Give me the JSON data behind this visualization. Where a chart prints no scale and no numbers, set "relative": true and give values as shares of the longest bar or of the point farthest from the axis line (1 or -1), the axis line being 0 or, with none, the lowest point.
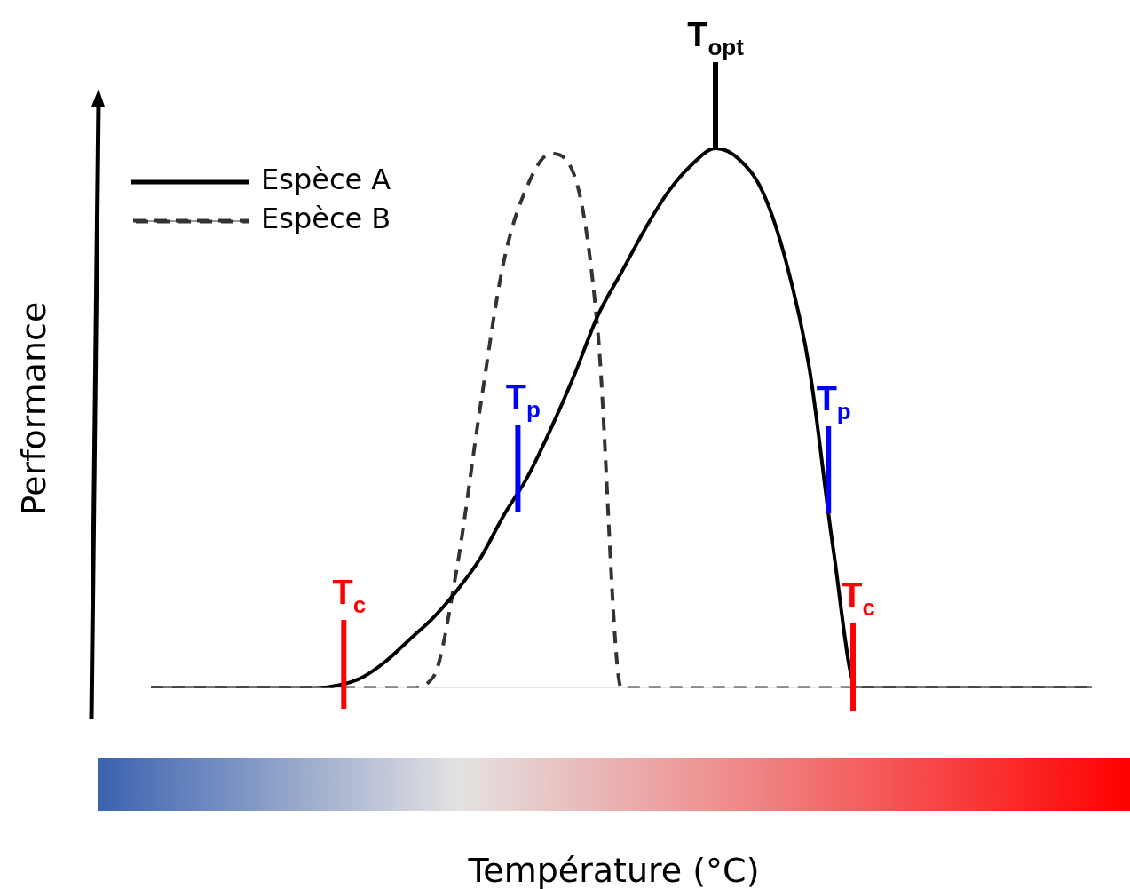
{
  "chart_data": {
    "type": "line",
    "relative": true,
    "xlabel": "Température (°C)",
    "ylabel": "Performance",
    "categories": [
      null,
      null,
      null,
      null,
      null,
      null,
      null,
      null,
      null,
      null,
      null,
      null,
      null,
      null,
      null,
      null,
      null,
      null,
      null,
      null,
      null,
      null,
      null,
      null,
      null,
      null,
      null,
      null,
      null,
      null,
      null,
      null,
      null,
      null,
      null,
      null,
      null,
      null,
      null,
      null,
      null
    ],
    "series": [
      {
        "name": "Espèce A",
        "color": "#000000",
        "line_style": "solid",
        "values": [
          0,
          0,
          0,
          0,
          0,
          0,
          0,
          0,
          0.005,
          0.02,
          0.05,
          0.09,
          0.13,
          0.18,
          0.24,
          0.32,
          0.39,
          0.48,
          0.58,
          0.69,
          0.77,
          0.85,
          0.92,
          0.97,
          1,
          0.98,
          0.92,
          0.79,
          0.59,
          0.26,
          0,
          0,
          0,
          0,
          0,
          0,
          0,
          0,
          0,
          0,
          0
        ]
      },
      {
        "name": "Espèce B",
        "color": "#333333",
        "line_style": "dashed",
        "values": [
          0,
          0,
          0,
          0,
          0,
          0,
          0,
          0,
          0,
          0,
          0,
          0,
          0.02,
          0.22,
          0.52,
          0.79,
          0.93,
          0.99,
          0.95,
          0.66,
          0,
          0,
          0,
          0,
          0,
          0,
          0,
          0,
          0,
          0,
          0,
          0,
          0,
          0,
          0,
          0,
          0,
          0,
          0,
          0,
          0
        ]
      }
    ],
    "annotations": [
      "T$_{opt}$",
      "T$_{p}$",
      "T$_{p}$",
      "T$_{c}$",
      "T$_{c}$"
    ],
    "legend": "top left",
    "marker": "none"
  }
}
